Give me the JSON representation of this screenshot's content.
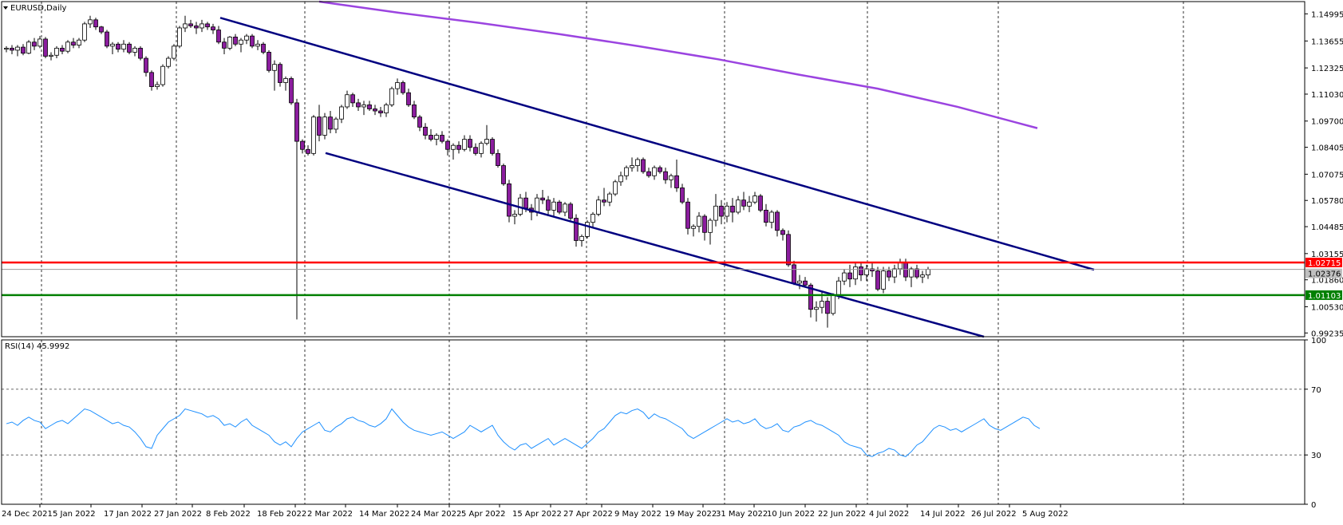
{
  "chart_data": {
    "type": "candlestick",
    "title": "EURUSD,Daily",
    "symbol": "EURUSD",
    "timeframe": "Daily",
    "colors": {
      "background": "#ffffff",
      "bull_fill": "#ffffff",
      "bear_fill": "#8b1d9e",
      "candle_outline": "#000000",
      "channel": "#000080",
      "ma_line": "#9b44e0",
      "resistance": "#ff0000",
      "support": "#008000",
      "rsi_line": "#1e90ff",
      "grid_vertical": "#000000"
    },
    "price_axis": {
      "ticks": [
        "1.14995",
        "1.13655",
        "1.12325",
        "1.11030",
        "1.09700",
        "1.08405",
        "1.07075",
        "1.05780",
        "1.04485",
        "1.03155",
        "1.01860",
        "1.00530",
        "0.99235"
      ],
      "ylim": [
        0.9905,
        1.156
      ]
    },
    "price_labels": {
      "resistance": "1.02715",
      "current": "1.02376",
      "support": "1.01103"
    },
    "date_axis": {
      "labels": [
        "24 Dec 2021",
        "5 Jan 2022",
        "17 Jan 2022",
        "27 Jan 2022",
        "8 Feb 2022",
        "18 Feb 2022",
        "2 Mar 2022",
        "14 Mar 2022",
        "24 Mar 2022",
        "5 Apr 2022",
        "15 Apr 2022",
        "27 Apr 2022",
        "9 May 2022",
        "19 May 2022",
        "31 May 2022",
        "10 Jun 2022",
        "22 Jun 2022",
        "4 Jul 2022",
        "14 Jul 2022",
        "26 Jul 2022",
        "5 Aug 2022"
      ]
    },
    "candles_ohlc": [
      [
        1.1325,
        1.134,
        1.131,
        1.133
      ],
      [
        1.133,
        1.1345,
        1.13,
        1.132
      ],
      [
        1.132,
        1.1345,
        1.129,
        1.1335
      ],
      [
        1.1335,
        1.135,
        1.1295,
        1.1305
      ],
      [
        1.1305,
        1.137,
        1.13,
        1.136
      ],
      [
        1.136,
        1.138,
        1.132,
        1.134
      ],
      [
        1.134,
        1.139,
        1.133,
        1.1375
      ],
      [
        1.1375,
        1.1385,
        1.128,
        1.129
      ],
      [
        1.129,
        1.131,
        1.127,
        1.1295
      ],
      [
        1.1295,
        1.134,
        1.128,
        1.133
      ],
      [
        1.133,
        1.1345,
        1.13,
        1.1315
      ],
      [
        1.1315,
        1.137,
        1.1305,
        1.136
      ],
      [
        1.136,
        1.138,
        1.133,
        1.1345
      ],
      [
        1.1345,
        1.138,
        1.133,
        1.137
      ],
      [
        1.137,
        1.146,
        1.136,
        1.145
      ],
      [
        1.145,
        1.149,
        1.143,
        1.147
      ],
      [
        1.147,
        1.148,
        1.142,
        1.1435
      ],
      [
        1.1435,
        1.144,
        1.14,
        1.141
      ],
      [
        1.141,
        1.142,
        1.133,
        1.134
      ],
      [
        1.134,
        1.136,
        1.13,
        1.135
      ],
      [
        1.135,
        1.136,
        1.131,
        1.1325
      ],
      [
        1.1325,
        1.137,
        1.131,
        1.135
      ],
      [
        1.135,
        1.136,
        1.13,
        1.131
      ],
      [
        1.131,
        1.134,
        1.129,
        1.133
      ],
      [
        1.133,
        1.134,
        1.127,
        1.128
      ],
      [
        1.128,
        1.129,
        1.119,
        1.121
      ],
      [
        1.121,
        1.122,
        1.112,
        1.114
      ],
      [
        1.114,
        1.1165,
        1.1125,
        1.115
      ],
      [
        1.115,
        1.125,
        1.114,
        1.124
      ],
      [
        1.124,
        1.129,
        1.123,
        1.128
      ],
      [
        1.128,
        1.135,
        1.127,
        1.134
      ],
      [
        1.134,
        1.144,
        1.133,
        1.143
      ],
      [
        1.143,
        1.149,
        1.141,
        1.145
      ],
      [
        1.145,
        1.147,
        1.143,
        1.144
      ],
      [
        1.144,
        1.146,
        1.14,
        1.143
      ],
      [
        1.143,
        1.147,
        1.141,
        1.145
      ],
      [
        1.145,
        1.146,
        1.142,
        1.1435
      ],
      [
        1.1435,
        1.145,
        1.14,
        1.142
      ],
      [
        1.142,
        1.144,
        1.135,
        1.136
      ],
      [
        1.136,
        1.138,
        1.13,
        1.133
      ],
      [
        1.133,
        1.139,
        1.132,
        1.1385
      ],
      [
        1.1385,
        1.14,
        1.134,
        1.135
      ],
      [
        1.135,
        1.138,
        1.131,
        1.137
      ],
      [
        1.137,
        1.14,
        1.135,
        1.139
      ],
      [
        1.139,
        1.14,
        1.133,
        1.134
      ],
      [
        1.134,
        1.137,
        1.132,
        1.135
      ],
      [
        1.135,
        1.136,
        1.13,
        1.131
      ],
      [
        1.131,
        1.132,
        1.121,
        1.122
      ],
      [
        1.122,
        1.127,
        1.112,
        1.125
      ],
      [
        1.125,
        1.126,
        1.114,
        1.116
      ],
      [
        1.116,
        1.119,
        1.112,
        1.118
      ],
      [
        1.118,
        1.119,
        1.105,
        1.106
      ],
      [
        1.106,
        1.108,
        0.999,
        1.087
      ],
      [
        1.087,
        1.088,
        1.081,
        1.083
      ],
      [
        1.083,
        1.085,
        1.08,
        1.081
      ],
      [
        1.081,
        1.1,
        1.08,
        1.099
      ],
      [
        1.099,
        1.105,
        1.087,
        1.09
      ],
      [
        1.09,
        1.101,
        1.088,
        1.099
      ],
      [
        1.099,
        1.102,
        1.091,
        1.093
      ],
      [
        1.093,
        1.099,
        1.091,
        1.098
      ],
      [
        1.098,
        1.105,
        1.096,
        1.104
      ],
      [
        1.104,
        1.112,
        1.103,
        1.11
      ],
      [
        1.11,
        1.111,
        1.104,
        1.106
      ],
      [
        1.106,
        1.108,
        1.102,
        1.104
      ],
      [
        1.104,
        1.107,
        1.1,
        1.105
      ],
      [
        1.105,
        1.107,
        1.102,
        1.103
      ],
      [
        1.103,
        1.105,
        1.1,
        1.102
      ],
      [
        1.102,
        1.104,
        1.099,
        1.101
      ],
      [
        1.101,
        1.106,
        1.099,
        1.105
      ],
      [
        1.105,
        1.114,
        1.104,
        1.113
      ],
      [
        1.113,
        1.118,
        1.11,
        1.116
      ],
      [
        1.116,
        1.117,
        1.11,
        1.111
      ],
      [
        1.111,
        1.113,
        1.104,
        1.105
      ],
      [
        1.105,
        1.107,
        1.098,
        1.099
      ],
      [
        1.099,
        1.1,
        1.092,
        1.094
      ],
      [
        1.094,
        1.096,
        1.088,
        1.09
      ],
      [
        1.09,
        1.093,
        1.087,
        1.088
      ],
      [
        1.088,
        1.091,
        1.085,
        1.09
      ],
      [
        1.09,
        1.092,
        1.086,
        1.087
      ],
      [
        1.087,
        1.088,
        1.08,
        1.083
      ],
      [
        1.083,
        1.086,
        1.078,
        1.085
      ],
      [
        1.085,
        1.087,
        1.081,
        1.083
      ],
      [
        1.083,
        1.09,
        1.082,
        1.088
      ],
      [
        1.088,
        1.09,
        1.082,
        1.084
      ],
      [
        1.084,
        1.086,
        1.08,
        1.081
      ],
      [
        1.081,
        1.087,
        1.079,
        1.086
      ],
      [
        1.086,
        1.095,
        1.085,
        1.088
      ],
      [
        1.088,
        1.089,
        1.08,
        1.081
      ],
      [
        1.081,
        1.083,
        1.074,
        1.075
      ],
      [
        1.075,
        1.076,
        1.065,
        1.066
      ],
      [
        1.066,
        1.068,
        1.047,
        1.05
      ],
      [
        1.05,
        1.053,
        1.046,
        1.051
      ],
      [
        1.051,
        1.061,
        1.05,
        1.059
      ],
      [
        1.059,
        1.062,
        1.052,
        1.054
      ],
      [
        1.054,
        1.056,
        1.048,
        1.052
      ],
      [
        1.052,
        1.061,
        1.05,
        1.059
      ],
      [
        1.059,
        1.063,
        1.056,
        1.058
      ],
      [
        1.058,
        1.06,
        1.05,
        1.053
      ],
      [
        1.053,
        1.059,
        1.05,
        1.057
      ],
      [
        1.057,
        1.058,
        1.051,
        1.052
      ],
      [
        1.052,
        1.057,
        1.05,
        1.056
      ],
      [
        1.056,
        1.057,
        1.048,
        1.049
      ],
      [
        1.049,
        1.051,
        1.035,
        1.038
      ],
      [
        1.038,
        1.041,
        1.035,
        1.04
      ],
      [
        1.04,
        1.048,
        1.039,
        1.047
      ],
      [
        1.047,
        1.052,
        1.044,
        1.051
      ],
      [
        1.051,
        1.06,
        1.05,
        1.058
      ],
      [
        1.058,
        1.064,
        1.055,
        1.057
      ],
      [
        1.057,
        1.062,
        1.055,
        1.061
      ],
      [
        1.061,
        1.068,
        1.06,
        1.067
      ],
      [
        1.067,
        1.072,
        1.065,
        1.07
      ],
      [
        1.07,
        1.075,
        1.068,
        1.074
      ],
      [
        1.074,
        1.079,
        1.072,
        1.075
      ],
      [
        1.075,
        1.079,
        1.072,
        1.078
      ],
      [
        1.078,
        1.079,
        1.071,
        1.072
      ],
      [
        1.072,
        1.074,
        1.069,
        1.07
      ],
      [
        1.07,
        1.075,
        1.068,
        1.074
      ],
      [
        1.074,
        1.075,
        1.071,
        1.072
      ],
      [
        1.072,
        1.074,
        1.066,
        1.068
      ],
      [
        1.068,
        1.071,
        1.064,
        1.07
      ],
      [
        1.07,
        1.078,
        1.062,
        1.064
      ],
      [
        1.064,
        1.066,
        1.056,
        1.057
      ],
      [
        1.057,
        1.059,
        1.041,
        1.044
      ],
      [
        1.044,
        1.046,
        1.04,
        1.045
      ],
      [
        1.045,
        1.052,
        1.042,
        1.05
      ],
      [
        1.05,
        1.051,
        1.038,
        1.042
      ],
      [
        1.042,
        1.049,
        1.036,
        1.048
      ],
      [
        1.048,
        1.061,
        1.045,
        1.055
      ],
      [
        1.055,
        1.058,
        1.046,
        1.05
      ],
      [
        1.05,
        1.057,
        1.047,
        1.055
      ],
      [
        1.055,
        1.059,
        1.047,
        1.052
      ],
      [
        1.052,
        1.06,
        1.051,
        1.058
      ],
      [
        1.058,
        1.062,
        1.053,
        1.055
      ],
      [
        1.055,
        1.06,
        1.052,
        1.057
      ],
      [
        1.057,
        1.062,
        1.056,
        1.06
      ],
      [
        1.06,
        1.061,
        1.052,
        1.053
      ],
      [
        1.053,
        1.056,
        1.045,
        1.047
      ],
      [
        1.047,
        1.053,
        1.044,
        1.052
      ],
      [
        1.052,
        1.053,
        1.04,
        1.043
      ],
      [
        1.043,
        1.044,
        1.038,
        1.041
      ],
      [
        1.041,
        1.043,
        1.025,
        1.026
      ],
      [
        1.026,
        1.028,
        1.016,
        1.017
      ],
      [
        1.017,
        1.021,
        1.014,
        1.018
      ],
      [
        1.018,
        1.02,
        1.015,
        1.016
      ],
      [
        1.016,
        1.017,
        1.0,
        1.004
      ],
      [
        1.004,
        1.008,
        0.998,
        1.005
      ],
      [
        1.005,
        1.013,
        1.002,
        1.008
      ],
      [
        1.008,
        1.01,
        0.995,
        1.002
      ],
      [
        1.002,
        1.012,
        1.001,
        1.011
      ],
      [
        1.011,
        1.02,
        1.009,
        1.018
      ],
      [
        1.018,
        1.024,
        1.016,
        1.022
      ],
      [
        1.022,
        1.026,
        1.015,
        1.019
      ],
      [
        1.019,
        1.027,
        1.016,
        1.025
      ],
      [
        1.025,
        1.027,
        1.018,
        1.021
      ],
      [
        1.021,
        1.026,
        1.018,
        1.024
      ],
      [
        1.024,
        1.027,
        1.02,
        1.023
      ],
      [
        1.023,
        1.025,
        1.013,
        1.014
      ],
      [
        1.014,
        1.025,
        1.012,
        1.023
      ],
      [
        1.023,
        1.025,
        1.018,
        1.02
      ],
      [
        1.02,
        1.026,
        1.017,
        1.024
      ],
      [
        1.024,
        1.029,
        1.021,
        1.027
      ],
      [
        1.027,
        1.029,
        1.018,
        1.02
      ],
      [
        1.02,
        1.025,
        1.015,
        1.024
      ],
      [
        1.024,
        1.026,
        1.019,
        1.02
      ],
      [
        1.02,
        1.023,
        1.017,
        1.021
      ],
      [
        1.021,
        1.025,
        1.019,
        1.0238
      ]
    ],
    "channel_upper": {
      "start": [
        4,
        1.148
      ],
      "end": [
        189,
        1.0236
      ]
    },
    "channel_lower": {
      "start": [
        55,
        1.0812
      ],
      "end": [
        175,
        0.9905
      ]
    },
    "ma_line": [
      1.156,
      1.1505,
      1.1455,
      1.14,
      1.134,
      1.1275,
      1.12,
      1.113,
      1.104,
      1.0935
    ],
    "rsi": {
      "label": "RSI(14) 45.9992",
      "ticks": [
        "100",
        "70",
        "30",
        "0"
      ],
      "ylim": [
        0,
        100
      ],
      "values": [
        49,
        50,
        48,
        51,
        53,
        51,
        50,
        46,
        48,
        50,
        51,
        49,
        52,
        55,
        58,
        57,
        55,
        53,
        51,
        49,
        50,
        48,
        47,
        44,
        40,
        35,
        34,
        42,
        46,
        50,
        52,
        54,
        58,
        57,
        56,
        55,
        53,
        54,
        52,
        48,
        49,
        47,
        50,
        52,
        48,
        46,
        44,
        42,
        38,
        36,
        38,
        35,
        40,
        44,
        46,
        48,
        50,
        45,
        44,
        47,
        49,
        52,
        53,
        51,
        50,
        48,
        47,
        49,
        52,
        58,
        54,
        50,
        47,
        45,
        44,
        43,
        42,
        43,
        44,
        42,
        40,
        42,
        44,
        48,
        46,
        44,
        46,
        48,
        42,
        38,
        35,
        33,
        36,
        37,
        34,
        36,
        38,
        40,
        36,
        38,
        40,
        38,
        36,
        34,
        37,
        40,
        44,
        46,
        50,
        54,
        56,
        55,
        57,
        58,
        56,
        52,
        55,
        53,
        52,
        50,
        48,
        46,
        42,
        40,
        42,
        44,
        46,
        48,
        50,
        52,
        50,
        51,
        49,
        50,
        52,
        48,
        46,
        47,
        49,
        45,
        44,
        47,
        48,
        50,
        51,
        49,
        48,
        46,
        44,
        42,
        38,
        36,
        35,
        34,
        30,
        29,
        31,
        32,
        34,
        33,
        30,
        29,
        32,
        36,
        38,
        42,
        46,
        48,
        47,
        45,
        46,
        44,
        46,
        48,
        50,
        52,
        48,
        46,
        45,
        47,
        49,
        51,
        53,
        52,
        48,
        46
      ]
    }
  }
}
